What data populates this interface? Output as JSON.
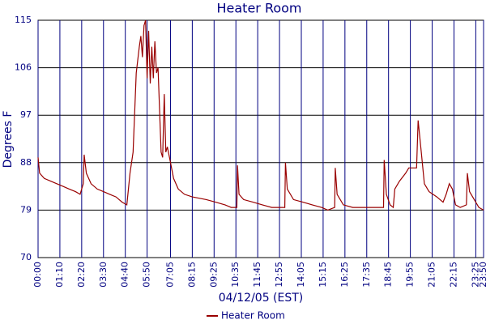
{
  "chart_data": {
    "type": "line",
    "title": "Heater Room",
    "x_label": "04/12/05 (EST)",
    "y_label": "Degrees F",
    "x": [
      "00:00",
      "00:05",
      "00:20",
      "00:40",
      "01:00",
      "01:20",
      "01:40",
      "02:00",
      "02:15",
      "02:25",
      "02:28",
      "02:35",
      "02:50",
      "03:10",
      "03:30",
      "03:50",
      "04:10",
      "04:30",
      "04:45",
      "04:55",
      "05:05",
      "05:15",
      "05:25",
      "05:30",
      "05:35",
      "05:40",
      "05:45",
      "05:50",
      "05:55",
      "06:00",
      "06:05",
      "06:10",
      "06:15",
      "06:20",
      "06:25",
      "06:30",
      "06:35",
      "06:40",
      "06:45",
      "06:50",
      "06:55",
      "07:05",
      "07:15",
      "07:30",
      "07:50",
      "08:15",
      "09:00",
      "09:30",
      "10:00",
      "10:20",
      "10:38",
      "10:40",
      "10:45",
      "11:00",
      "11:30",
      "12:00",
      "12:30",
      "13:12",
      "13:14",
      "13:20",
      "13:40",
      "14:10",
      "14:40",
      "15:10",
      "15:30",
      "15:52",
      "15:54",
      "16:00",
      "16:20",
      "16:50",
      "17:30",
      "18:29",
      "18:31",
      "18:38",
      "18:50",
      "19:00",
      "19:05",
      "19:20",
      "19:40",
      "19:50",
      "20:15",
      "20:20",
      "20:30",
      "20:40",
      "20:55",
      "21:20",
      "21:40",
      "21:50",
      "22:00",
      "22:10",
      "22:20",
      "22:35",
      "22:55",
      "22:58",
      "23:05",
      "23:20",
      "23:35",
      "23:50"
    ],
    "series": [
      {
        "name": "Heater Room",
        "color": "#990000",
        "values": [
          89,
          86,
          85,
          84.5,
          84,
          83.5,
          83,
          82.5,
          82,
          84,
          89.5,
          86,
          84,
          83,
          82.5,
          82,
          81.5,
          80.5,
          80,
          86,
          90,
          105,
          110,
          112,
          108,
          114,
          115,
          104,
          113,
          103,
          110,
          104,
          111,
          105,
          106,
          98,
          90,
          89,
          101,
          90,
          91,
          88,
          85,
          83,
          82,
          81.5,
          81,
          80.5,
          80,
          79.5,
          79.5,
          87.5,
          82,
          81,
          80.5,
          80,
          79.5,
          79.5,
          88,
          83,
          81,
          80.5,
          80,
          79.5,
          79,
          79.5,
          87,
          82,
          80,
          79.5,
          79.5,
          79.5,
          88.5,
          82,
          80,
          79.5,
          83,
          84.5,
          86,
          87,
          87,
          96,
          90,
          84,
          82.5,
          81.5,
          80.5,
          82,
          84,
          83,
          80,
          79.5,
          80,
          86,
          82.5,
          81,
          79.5,
          79
        ]
      }
    ],
    "xlim": [
      "00:00",
      "23:50"
    ],
    "xticks": [
      "00:00",
      "01:10",
      "02:20",
      "03:30",
      "04:40",
      "05:50",
      "07:05",
      "08:15",
      "09:25",
      "10:35",
      "11:45",
      "12:55",
      "14:05",
      "15:15",
      "16:25",
      "17:35",
      "18:45",
      "19:55",
      "21:05",
      "22:15",
      "23:25",
      "23:50"
    ],
    "ylim": [
      70,
      115
    ],
    "yticks": [
      70,
      79,
      88,
      97,
      106,
      115
    ],
    "grid": true,
    "legend": "bottom"
  }
}
